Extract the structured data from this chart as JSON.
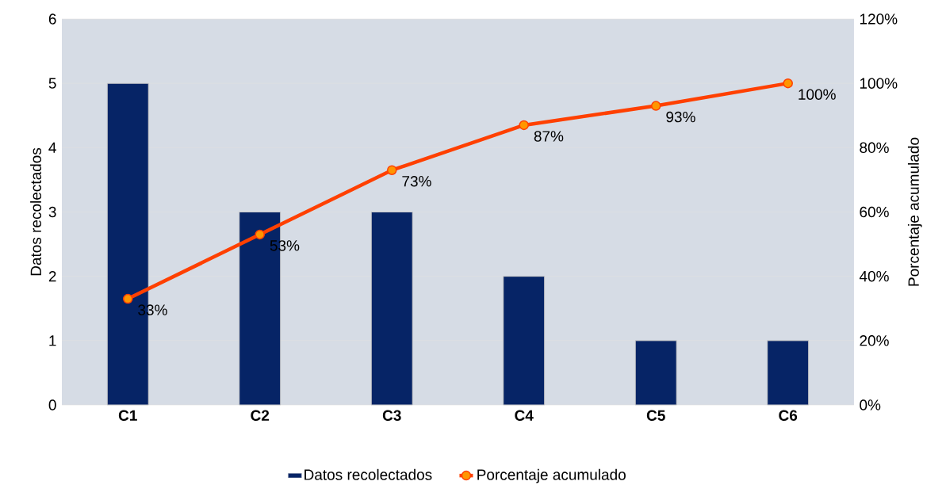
{
  "chart_data": {
    "type": "bar",
    "categories": [
      "C1",
      "C2",
      "C3",
      "C4",
      "C5",
      "C6"
    ],
    "series": [
      {
        "name": "Datos recolectados",
        "color": "#062466",
        "values": [
          5,
          3,
          3,
          2,
          1,
          1
        ]
      },
      {
        "name": "Porcentaje acumulado",
        "type": "line",
        "axis": "y2",
        "color": "#ff4000",
        "values": [
          33,
          53,
          73,
          87,
          93,
          100
        ],
        "value_labels": [
          "33%",
          "53%",
          "73%",
          "87%",
          "93%",
          "100%"
        ]
      }
    ],
    "ylabel": "Datos recolectados",
    "y2label": "Porcentaje acumulado",
    "ylim": [
      0,
      6
    ],
    "yticks": [
      0,
      1,
      2,
      3,
      4,
      5,
      6
    ],
    "y2lim": [
      0,
      120
    ],
    "y2ticks": [
      {
        "value": 0,
        "label": "0%"
      },
      {
        "value": 20,
        "label": "20%"
      },
      {
        "value": 40,
        "label": "40%"
      },
      {
        "value": 60,
        "label": "60%"
      },
      {
        "value": 80,
        "label": "80%"
      },
      {
        "value": 100,
        "label": "100%"
      },
      {
        "value": 120,
        "label": "120%"
      }
    ],
    "grid": "y",
    "legend": "bottom",
    "marker": "circle",
    "line_style": "solid"
  }
}
